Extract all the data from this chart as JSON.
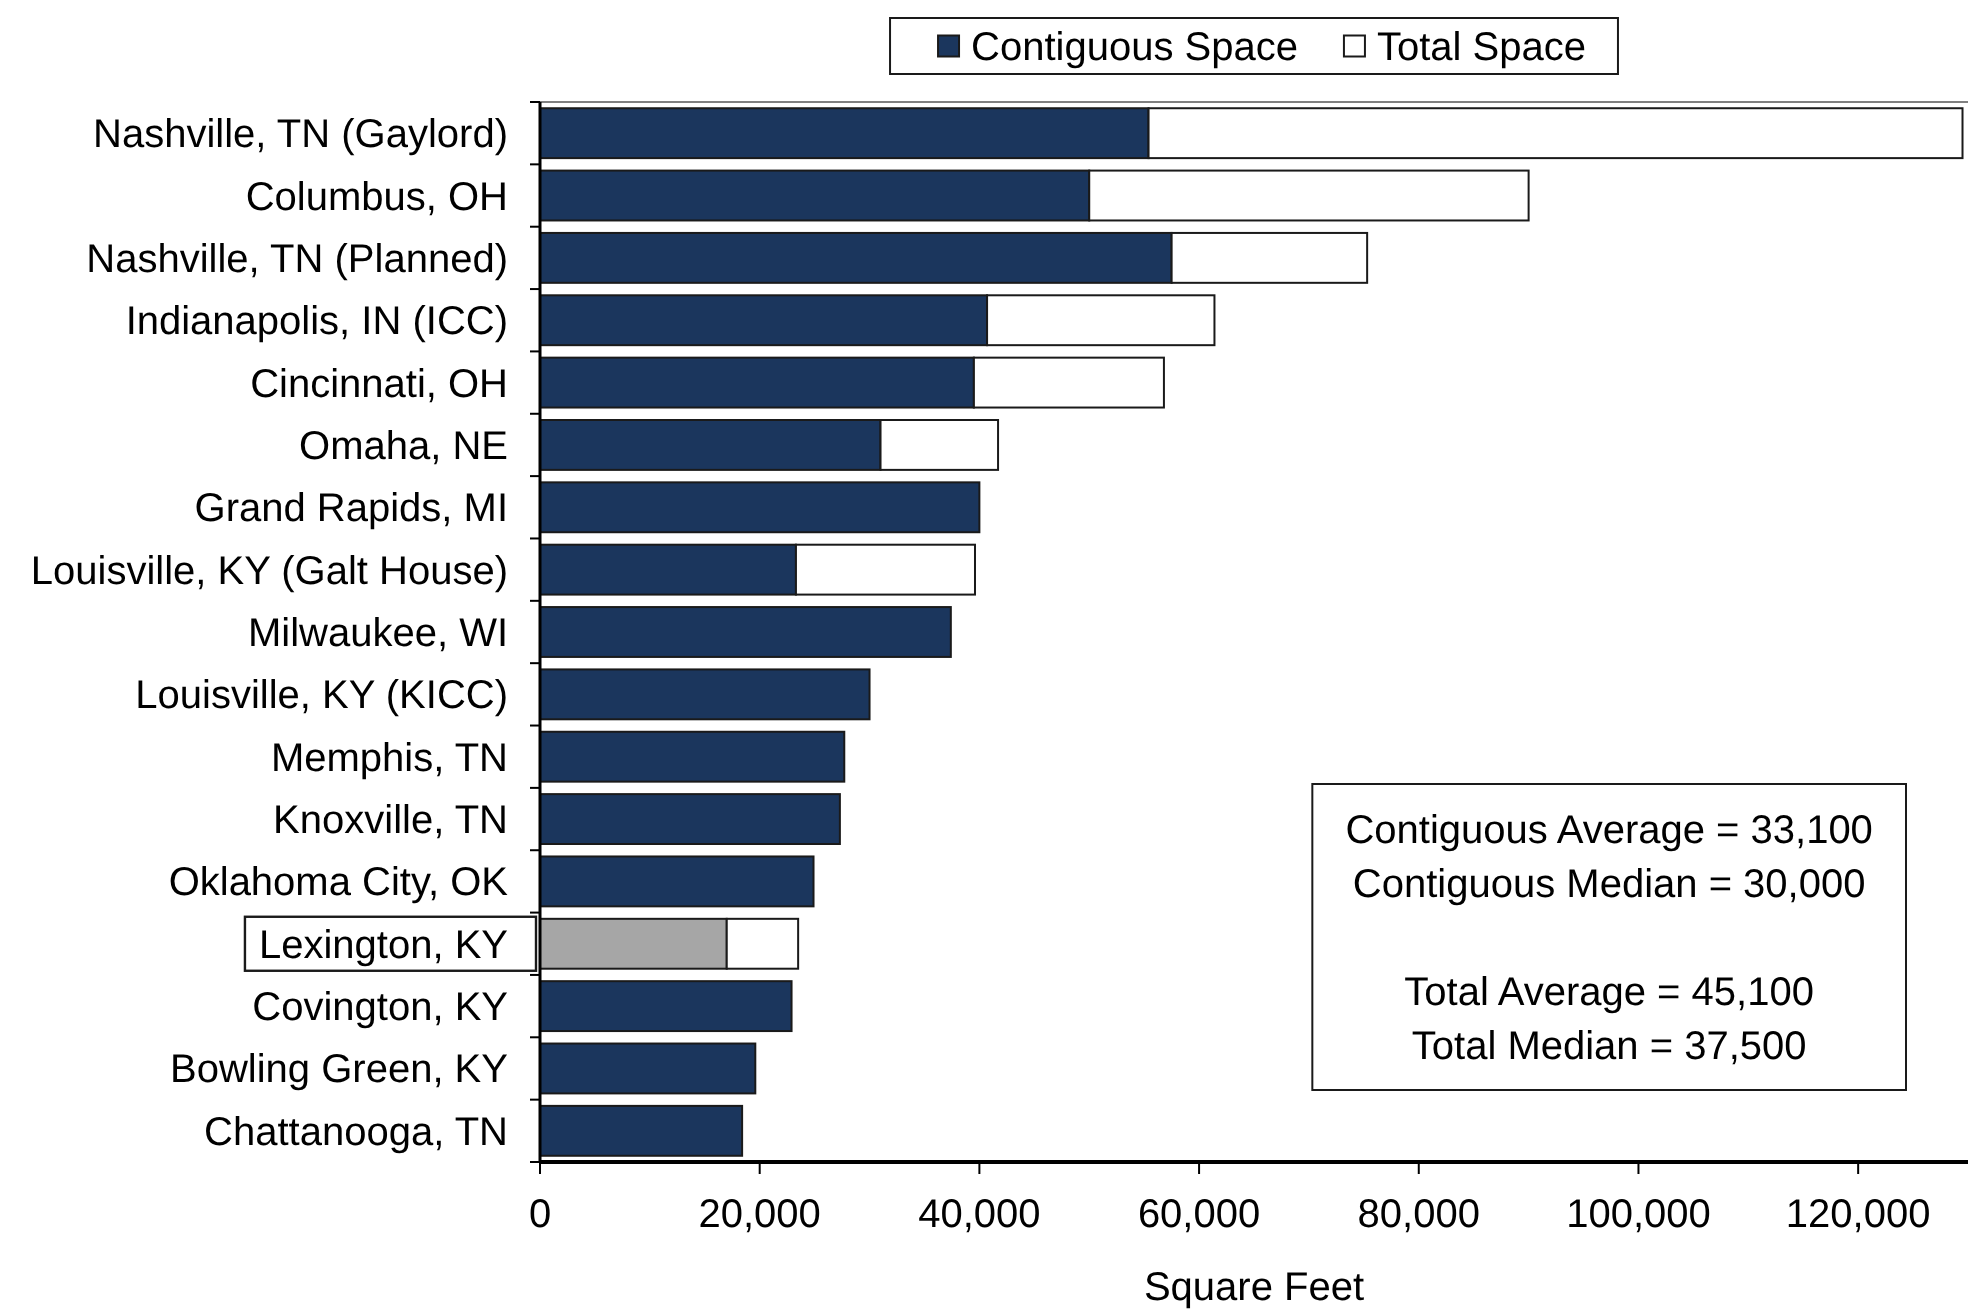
{
  "chart_data": {
    "type": "bar",
    "orientation": "horizontal",
    "stacked": true,
    "categories": [
      "Nashville, TN (Gaylord)",
      "Columbus, OH",
      "Nashville, TN (Planned)",
      "Indianapolis, IN (ICC)",
      "Cincinnati, OH",
      "Omaha, NE",
      "Grand Rapids, MI",
      "Louisville, KY (Galt House)",
      "Milwaukee, WI",
      "Louisville, KY (KICC)",
      "Memphis, TN",
      "Knoxville, TN",
      "Oklahoma City, OK",
      "Lexington, KY",
      "Covington, KY",
      "Bowling Green, KY",
      "Chattanooga, TN"
    ],
    "series": [
      {
        "name": "Contiguous Space",
        "color": "#1b365d",
        "colors": [
          "#1b365d",
          "#1b365d",
          "#1b365d",
          "#1b365d",
          "#1b365d",
          "#1b365d",
          "#1b365d",
          "#1b365d",
          "#1b365d",
          "#1b365d",
          "#1b365d",
          "#1b365d",
          "#1b365d",
          "#a6a6a6",
          "#1b365d",
          "#1b365d",
          "#1b365d"
        ],
        "values": [
          55400,
          50000,
          57500,
          40700,
          39500,
          31000,
          40000,
          23300,
          37400,
          30000,
          27700,
          27300,
          24900,
          17000,
          22900,
          19600,
          18400
        ]
      },
      {
        "name": "Total Space",
        "color": "#ffffff",
        "values": [
          74100,
          40000,
          17800,
          20700,
          17300,
          10700,
          null,
          16300,
          null,
          null,
          null,
          null,
          null,
          6500,
          null,
          null,
          null
        ]
      }
    ],
    "xlim": [
      0,
      130000
    ],
    "xticks": [
      0,
      {
        "value": 20000,
        "label": "20,000"
      },
      {
        "value": 40000,
        "label": "40,000"
      },
      {
        "value": 60000,
        "label": "60,000"
      },
      {
        "value": 80000,
        "label": "80,000"
      },
      {
        "value": 100000,
        "label": "100,000"
      },
      {
        "value": 120000,
        "label": "120,000"
      }
    ],
    "xlabel": "Square Feet",
    "legend": "top",
    "annotations": [
      "Contiguous Average = 33,100\nContiguous Median = 30,000",
      "Total Average = 45,100\nTotal Median = 37,500"
    ]
  }
}
